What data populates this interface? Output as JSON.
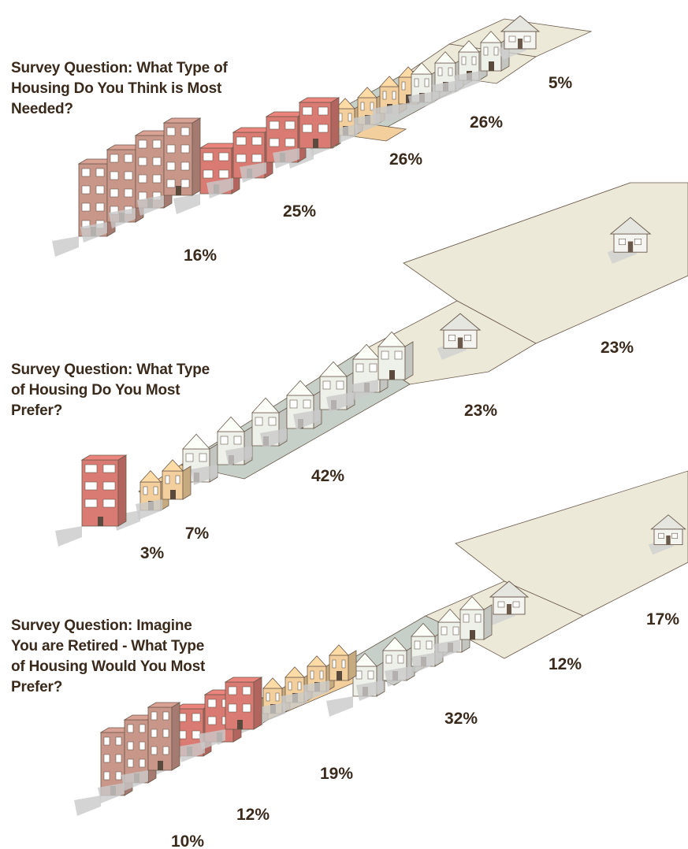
{
  "chart_data": [
    {
      "type": "bar",
      "title": "Survey Question: What Type of Housing Do You Think is Most Needed?",
      "categories": [
        "Apartments",
        "Mixed-use",
        "Townhouses",
        "Small-lot homes",
        "Large-lot home"
      ],
      "values": [
        16,
        25,
        26,
        26,
        5
      ],
      "labels": [
        "16%",
        "25%",
        "26%",
        "26%",
        "5%"
      ]
    },
    {
      "type": "bar",
      "title": "Survey Question: What Type of Housing Do You Most Prefer?",
      "categories": [
        "Mixed-use",
        "Townhouses",
        "Small-lot homes",
        "Medium-lot home",
        "Large-lot home"
      ],
      "values": [
        3,
        7,
        42,
        23,
        23
      ],
      "labels": [
        "3%",
        "7%",
        "42%",
        "23%",
        "23%"
      ]
    },
    {
      "type": "bar",
      "title": "Survey Question: Imagine You are Retired - What Type of Housing Would You Most Prefer?",
      "categories": [
        "Apartments",
        "Mixed-use",
        "Townhouses",
        "Small-lot homes",
        "Medium-lot home",
        "Large-lot home"
      ],
      "values": [
        10,
        12,
        19,
        32,
        12,
        17
      ],
      "labels": [
        "10%",
        "12%",
        "19%",
        "32%",
        "12%",
        "17%"
      ]
    }
  ],
  "questions": {
    "q1": [
      "Survey Question: What Type of",
      "Housing Do You Think is Most",
      "Needed?"
    ],
    "q2": [
      "Survey Question: What Type",
      "of Housing Do You Most",
      "Prefer?"
    ],
    "q3": [
      "Survey Question: Imagine",
      "You are Retired - What Type",
      "of Housing Would You Most",
      "Prefer?"
    ]
  },
  "colors": {
    "apartments": "#c9968a",
    "mixed_use": "#d97a73",
    "townhouses": "#f2cf9c",
    "small_lot": "#c6d0c9",
    "large_lot": "#ece9d9",
    "text": "#3a2a1c"
  }
}
